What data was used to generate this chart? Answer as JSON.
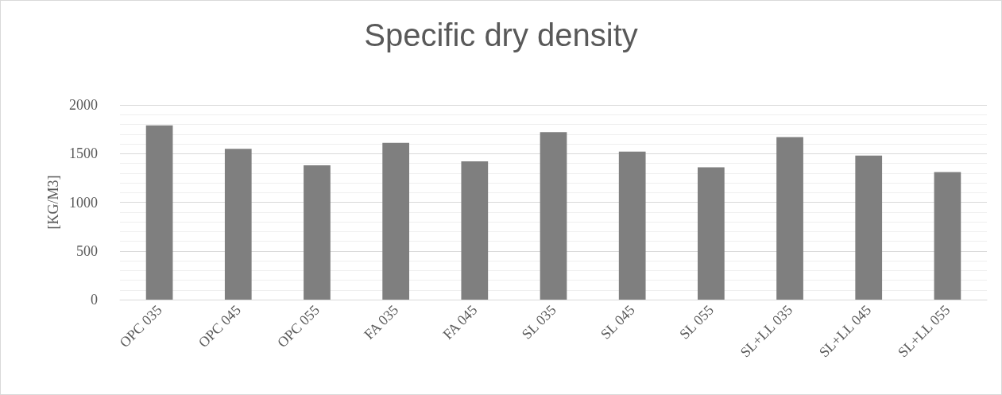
{
  "chart_data": {
    "type": "bar",
    "title": "Specific dry density",
    "ylabel": "[KG/M3]",
    "categories": [
      "OPC 035",
      "OPC 045",
      "OPC 055",
      "FA 035",
      "FA 045",
      "SL 035",
      "SL 045",
      "SL 055",
      "SL+LL 035",
      "SL+LL 045",
      "SL+LL 055"
    ],
    "values": [
      1790,
      1550,
      1380,
      1610,
      1420,
      1720,
      1520,
      1360,
      1670,
      1480,
      1310
    ],
    "color": "#7f7f7f",
    "ylim": [
      0,
      2000
    ],
    "yticks": [
      0,
      500,
      1000,
      1500,
      2000
    ],
    "grid": true
  }
}
